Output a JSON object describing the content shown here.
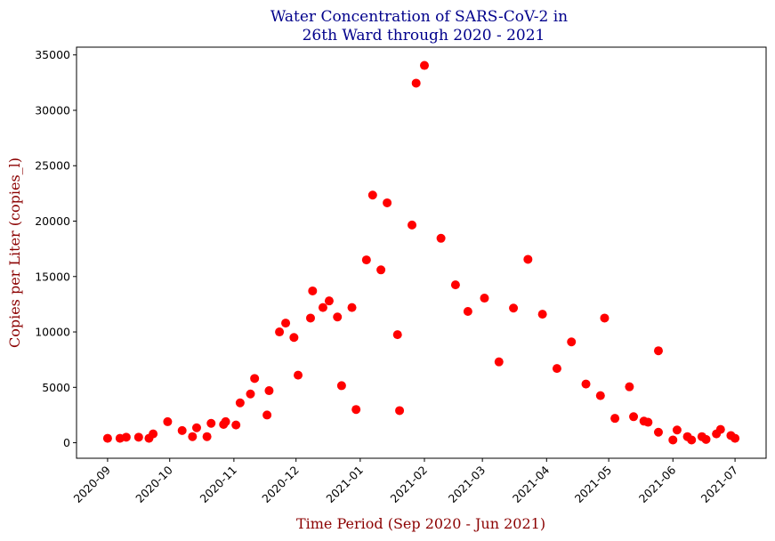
{
  "chart_data": {
    "type": "scatter",
    "title_lines": [
      "Water Concentration of SARS-CoV-2 in",
      "26th Ward through 2020 - 2021"
    ],
    "xlabel": "Time Period (Sep 2020 - Jun 2021)",
    "ylabel": "Copies per Liter (copies_l)",
    "xlim": [
      "2020-08-17",
      "2021-07-16"
    ],
    "ylim": [
      -1400,
      35700
    ],
    "x_ticks": [
      "2020-09",
      "2020-10",
      "2020-11",
      "2020-12",
      "2021-01",
      "2021-02",
      "2021-03",
      "2021-04",
      "2021-05",
      "2021-06",
      "2021-07"
    ],
    "y_ticks": [
      0,
      5000,
      10000,
      15000,
      20000,
      25000,
      30000,
      35000
    ],
    "grid": false,
    "marker_color": "#ff0000",
    "points": [
      [
        "2020-09-01",
        400
      ],
      [
        "2020-09-07",
        400
      ],
      [
        "2020-09-10",
        500
      ],
      [
        "2020-09-16",
        500
      ],
      [
        "2020-09-21",
        400
      ],
      [
        "2020-09-23",
        800
      ],
      [
        "2020-09-30",
        1900
      ],
      [
        "2020-10-07",
        1100
      ],
      [
        "2020-10-12",
        550
      ],
      [
        "2020-10-14",
        1350
      ],
      [
        "2020-10-19",
        550
      ],
      [
        "2020-10-21",
        1750
      ],
      [
        "2020-10-27",
        1650
      ],
      [
        "2020-10-28",
        1900
      ],
      [
        "2020-11-02",
        1600
      ],
      [
        "2020-11-04",
        3600
      ],
      [
        "2020-11-09",
        4400
      ],
      [
        "2020-11-11",
        5800
      ],
      [
        "2020-11-17",
        2500
      ],
      [
        "2020-11-18",
        4700
      ],
      [
        "2020-11-23",
        10000
      ],
      [
        "2020-11-26",
        10800
      ],
      [
        "2020-11-30",
        9500
      ],
      [
        "2020-12-02",
        6100
      ],
      [
        "2020-12-08",
        11250
      ],
      [
        "2020-12-09",
        13700
      ],
      [
        "2020-12-14",
        12200
      ],
      [
        "2020-12-17",
        12800
      ],
      [
        "2020-12-21",
        11350
      ],
      [
        "2020-12-23",
        5150
      ],
      [
        "2020-12-28",
        12200
      ],
      [
        "2020-12-30",
        3000
      ],
      [
        "2021-01-04",
        16500
      ],
      [
        "2021-01-07",
        22350
      ],
      [
        "2021-01-11",
        15600
      ],
      [
        "2021-01-14",
        21650
      ],
      [
        "2021-01-19",
        9750
      ],
      [
        "2021-01-20",
        2900
      ],
      [
        "2021-01-26",
        19650
      ],
      [
        "2021-01-28",
        32450
      ],
      [
        "2021-02-01",
        34050
      ],
      [
        "2021-02-09",
        18450
      ],
      [
        "2021-02-16",
        14250
      ],
      [
        "2021-02-22",
        11850
      ],
      [
        "2021-03-02",
        13050
      ],
      [
        "2021-03-09",
        7300
      ],
      [
        "2021-03-16",
        12150
      ],
      [
        "2021-03-23",
        16550
      ],
      [
        "2021-03-30",
        11600
      ],
      [
        "2021-04-06",
        6700
      ],
      [
        "2021-04-13",
        9100
      ],
      [
        "2021-04-20",
        5300
      ],
      [
        "2021-04-27",
        4250
      ],
      [
        "2021-04-29",
        11250
      ],
      [
        "2021-05-04",
        2200
      ],
      [
        "2021-05-11",
        5050
      ],
      [
        "2021-05-13",
        2350
      ],
      [
        "2021-05-18",
        1950
      ],
      [
        "2021-05-20",
        1850
      ],
      [
        "2021-05-25",
        950
      ],
      [
        "2021-05-25",
        8300
      ],
      [
        "2021-06-01",
        250
      ],
      [
        "2021-06-03",
        1150
      ],
      [
        "2021-06-08",
        550
      ],
      [
        "2021-06-10",
        250
      ],
      [
        "2021-06-15",
        550
      ],
      [
        "2021-06-17",
        300
      ],
      [
        "2021-06-22",
        800
      ],
      [
        "2021-06-24",
        1200
      ],
      [
        "2021-06-29",
        650
      ],
      [
        "2021-07-01",
        400
      ]
    ]
  }
}
